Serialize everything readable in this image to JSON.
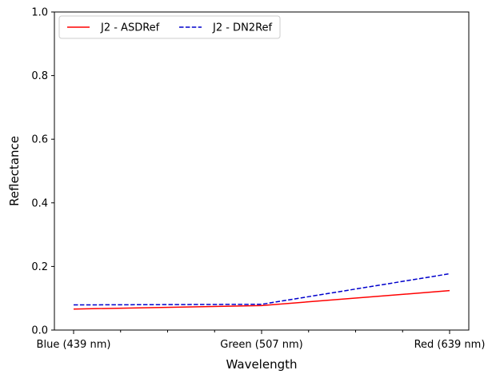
{
  "chart_data": {
    "type": "line",
    "title": "",
    "xlabel": "Wavelength",
    "ylabel": "Reflectance",
    "categories": [
      "Blue (439 nm)",
      "Green (507 nm)",
      "Red (639 nm)"
    ],
    "ylim": [
      0,
      1.0
    ],
    "yticks": [
      0.0,
      0.2,
      0.4,
      0.6,
      0.8,
      1.0
    ],
    "ytick_labels": [
      "0.0",
      "0.2",
      "0.4",
      "0.6",
      "0.8",
      "1.0"
    ],
    "grid": false,
    "legend_position": "top-left",
    "legend_columns": 2,
    "series": [
      {
        "name": "J2 - ASDRef",
        "values": [
          0.066,
          0.077,
          0.124
        ],
        "color": "#ff0000",
        "line_style": "solid"
      },
      {
        "name": "J2 - DN2Ref",
        "values": [
          0.079,
          0.081,
          0.177
        ],
        "color": "#0000cc",
        "line_style": "dashed"
      }
    ]
  }
}
